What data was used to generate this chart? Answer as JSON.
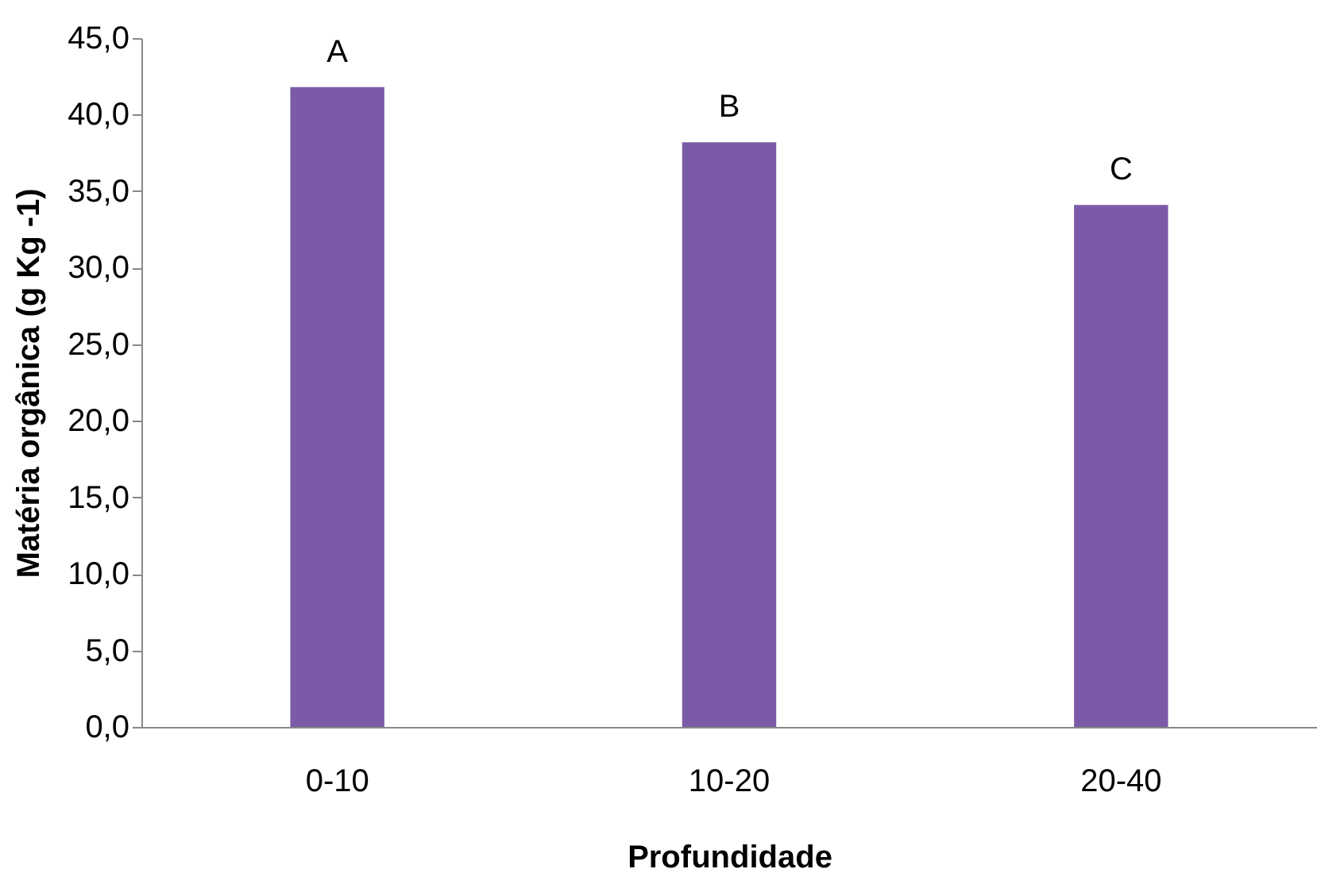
{
  "chart_data": {
    "type": "bar",
    "xlabel": "Profundidade",
    "ylabel": "Matéria orgânica (g Kg -1)",
    "categories": [
      "0-10",
      "10-20",
      "20-40"
    ],
    "values": [
      41.8,
      38.2,
      34.1
    ],
    "color": "#7b5ba8",
    "ylim": [
      0,
      45
    ],
    "yticks": [
      {
        "value": 0,
        "label": "0,0"
      },
      {
        "value": 5,
        "label": "5,0"
      },
      {
        "value": 10,
        "label": "10,0"
      },
      {
        "value": 15,
        "label": "15,0"
      },
      {
        "value": 20,
        "label": "20,0"
      },
      {
        "value": 25,
        "label": "25,0"
      },
      {
        "value": 30,
        "label": "30,0"
      },
      {
        "value": 35,
        "label": "35,0"
      },
      {
        "value": 40,
        "label": "40,0"
      },
      {
        "value": 45,
        "label": "45,0"
      }
    ],
    "annotations": [
      {
        "text": "A",
        "x": "0-10",
        "y": 41.8
      },
      {
        "text": "B",
        "x": "10-20",
        "y": 38.2
      },
      {
        "text": "C",
        "x": "20-40",
        "y": 34.1
      }
    ]
  }
}
